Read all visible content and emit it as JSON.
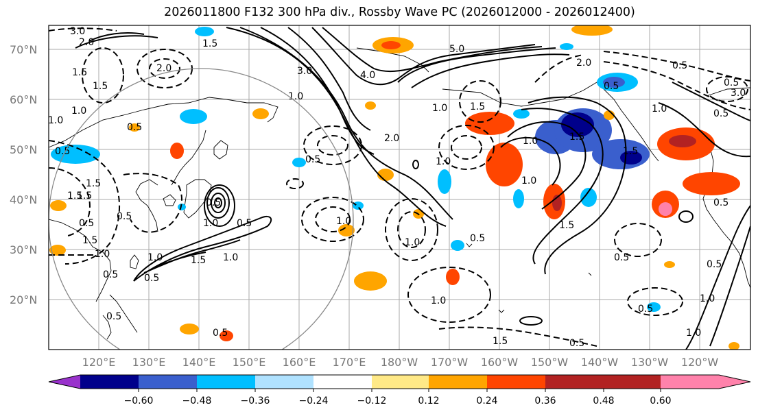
{
  "title": "2026011800 F132 300 hPa div., Rossby Wave PC (2026012000 - 2026012400)",
  "latitude_labels": [
    "70°N",
    "60°N",
    "50°N",
    "40°N",
    "30°N",
    "20°N"
  ],
  "longitude_labels": [
    "120°E",
    "130°E",
    "140°E",
    "150°E",
    "160°E",
    "170°E",
    "180°W",
    "170°W",
    "160°W",
    "150°W",
    "140°W",
    "130°W",
    "120°W"
  ],
  "contour_labels": [
    "3.0",
    "2.0",
    "1.5",
    "2.0",
    "1.5",
    "1.0",
    "5.0",
    "3.0",
    "4.0",
    "1.0",
    "1.5",
    "2.0",
    "1.0",
    "0.5",
    "2.0",
    "1.5",
    "1.0",
    "0.5",
    "1.0",
    "1.5",
    "0.5",
    "1.0",
    "0.5",
    "1.5",
    "0.5",
    "1.0",
    "1.5",
    "0.5",
    "0.5",
    "1.0",
    "0.5",
    "1.0",
    "0.5",
    "1.5",
    "0.5",
    "1.0",
    "0.5",
    "1.0",
    "0.5",
    "1.0",
    "1.5",
    "0.5",
    "1.0",
    "1.5",
    "0.5",
    "1.5",
    "0.5",
    "0.5",
    "1.0",
    "0.5",
    "0.5",
    "1.0",
    "1.5",
    "0.5",
    "0.5",
    "3.0",
    "0.5",
    "1.0",
    "1.5",
    "1.0"
  ],
  "colorbar": {
    "ticks": [
      "−0.60",
      "−0.48",
      "−0.36",
      "−0.24",
      "−0.12",
      "0.12",
      "0.24",
      "0.36",
      "0.48",
      "0.60"
    ],
    "colors": [
      "#9932cc",
      "#00008b",
      "#3a5fcd",
      "#00bfff",
      "#b0e2ff",
      "#ffffff",
      "#ffe987",
      "#ffa500",
      "#ff4500",
      "#b22222",
      "#ff82ab"
    ]
  }
}
